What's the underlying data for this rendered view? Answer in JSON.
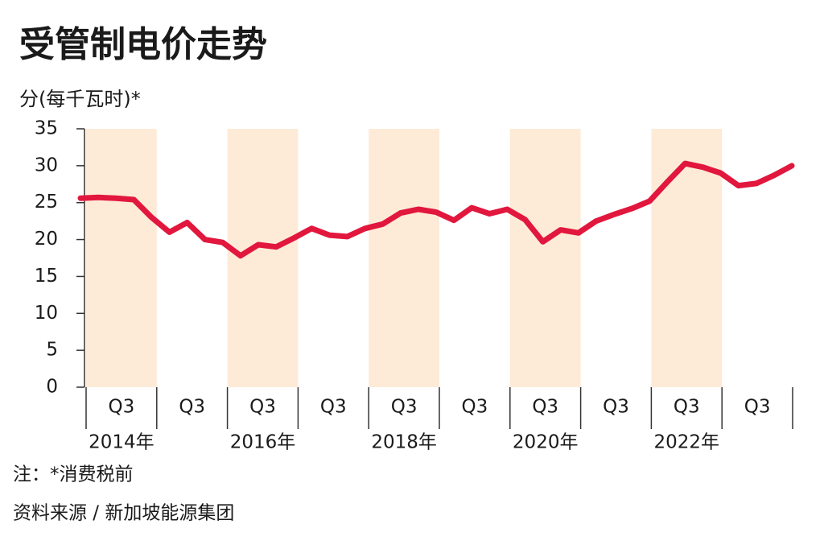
{
  "chart_data": {
    "type": "line",
    "title": "受管制电价走势",
    "y_label": "分(每千瓦时)*",
    "note": "注：*消费税前",
    "source": "资料来源 / 新加坡能源集团",
    "quarter_labels": [
      "Q3",
      "Q3",
      "Q3",
      "Q3",
      "Q3",
      "Q3",
      "Q3",
      "Q3",
      "Q3",
      "Q3"
    ],
    "year_labels": [
      "2014年",
      "2016年",
      "2018年",
      "2020年",
      "2022年"
    ],
    "series": [
      {
        "name": "受管制电价",
        "color": "#e2173e",
        "values": [
          25.6,
          25.7,
          25.6,
          25.4,
          23.0,
          21.0,
          22.3,
          20.0,
          19.6,
          17.8,
          19.3,
          19.0,
          20.2,
          21.5,
          20.6,
          20.4,
          21.5,
          22.1,
          23.6,
          24.1,
          23.7,
          22.6,
          24.3,
          23.5,
          24.1,
          22.7,
          19.7,
          21.3,
          20.9,
          22.5,
          23.4,
          24.2,
          25.2,
          27.8,
          30.3,
          29.8,
          29.0,
          27.3,
          27.6,
          28.7,
          30.0
        ]
      }
    ],
    "ylim": [
      0,
      35
    ],
    "yticks": [
      0,
      5,
      10,
      15,
      20,
      25,
      30,
      35
    ],
    "band_color": "#fdebd8"
  }
}
